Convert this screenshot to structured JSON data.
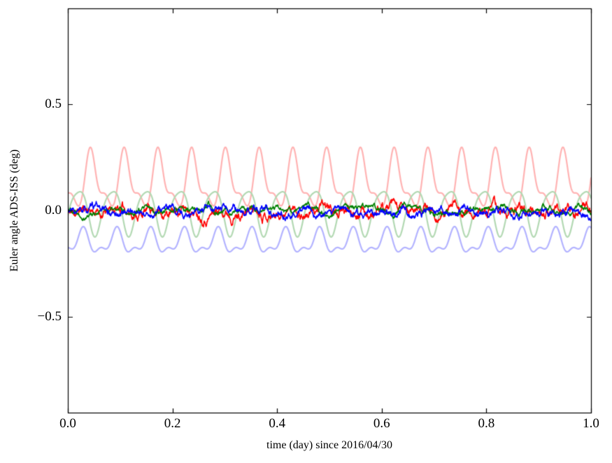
{
  "figure": {
    "background": "#ffffff",
    "frame_color": "#000000",
    "tick_color": "#000000",
    "text_color": "#000000"
  },
  "chart_data": {
    "type": "line",
    "title": "",
    "xlabel": "time (day) since 2016/04/30",
    "ylabel": "Euler angle ADS-ISS (deg)",
    "xlim": [
      0.0,
      1.0
    ],
    "ylim": [
      -0.95,
      0.95
    ],
    "grid": false,
    "legend": "none",
    "tick_direction": "in",
    "xticks": [
      {
        "value": 0.0,
        "label": "0.0"
      },
      {
        "value": 0.2,
        "label": "0.2"
      },
      {
        "value": 0.4,
        "label": "0.4"
      },
      {
        "value": 0.6,
        "label": "0.6"
      },
      {
        "value": 0.8,
        "label": "0.8"
      },
      {
        "value": 1.0,
        "label": "1.0"
      }
    ],
    "yticks": [
      {
        "value": 0.5,
        "label": "0.5"
      },
      {
        "value": 0.0,
        "label": "0.0"
      },
      {
        "value": -0.5,
        "label": "−0.5"
      }
    ],
    "series": [
      {
        "name": "pale-red-periodic",
        "description": "pale red periodic curve, ~15.5 cycles/day, peaks ≈ +0.30, troughs ≈ +0.03",
        "color": "#ffb3b3",
        "line_width": 2.2,
        "kind": "periodic",
        "samples": 2200,
        "offset": 0.05,
        "components": [
          {
            "shape": "hump",
            "amp": 0.24,
            "freq": 15.5,
            "phase": -2.81,
            "exp": 2.5
          },
          {
            "shape": "sin",
            "amp": 0.03,
            "freq": 31.0,
            "phase": 0.6
          }
        ]
      },
      {
        "name": "pale-green-periodic",
        "description": "pale green periodic curve oscillating between ≈ +0.12 and −0.12, ~15.5 cycles/day",
        "color": "#b3d9b3",
        "line_width": 2.2,
        "kind": "periodic",
        "samples": 2200,
        "offset": 0.0,
        "components": [
          {
            "shape": "sin",
            "amp": 0.105,
            "freq": 15.5,
            "phase": -0.4
          },
          {
            "shape": "sin",
            "amp": 0.02,
            "freq": 31.0,
            "phase": 1.1
          }
        ]
      },
      {
        "name": "pale-blue-periodic",
        "description": "pale blue periodic curve oscillating between ≈ −0.08 and −0.22, ~15.5 cycles/day",
        "color": "#b3b3ff",
        "line_width": 2.2,
        "kind": "periodic",
        "samples": 2200,
        "offset": -0.15,
        "components": [
          {
            "shape": "sin",
            "amp": 0.05,
            "freq": 15.5,
            "phase": -1.2
          },
          {
            "shape": "sin",
            "amp": 0.025,
            "freq": 31.0,
            "phase": 2.0
          }
        ]
      },
      {
        "name": "red-noisy",
        "description": "saturated red noisy trace centered near 0.00, excursions ≈ ±0.05",
        "color": "#ff0000",
        "line_width": 1.6,
        "kind": "noisy",
        "samples": 1440,
        "mean": -0.002,
        "std": 0.02,
        "smooth": 0.93,
        "seed": 11,
        "components": [
          {
            "shape": "sin",
            "amp": 0.012,
            "freq": 15.5,
            "phase": -2.0
          }
        ]
      },
      {
        "name": "green-noisy",
        "description": "dark green noisy trace centered near 0.00, excursions ≈ ±0.04",
        "color": "#008000",
        "line_width": 1.6,
        "kind": "noisy",
        "samples": 1440,
        "mean": 0.002,
        "std": 0.012,
        "smooth": 0.93,
        "seed": 22,
        "components": [
          {
            "shape": "sin",
            "amp": 0.008,
            "freq": 15.5,
            "phase": 1.0
          }
        ]
      },
      {
        "name": "blue-noisy",
        "description": "blue noisy trace slightly below 0.00, excursions ≈ ±0.05",
        "color": "#0000ff",
        "line_width": 1.6,
        "kind": "noisy",
        "samples": 1440,
        "mean": -0.008,
        "std": 0.016,
        "smooth": 0.93,
        "seed": 33,
        "components": [
          {
            "shape": "sin",
            "amp": 0.01,
            "freq": 15.5,
            "phase": 2.5
          }
        ]
      }
    ]
  }
}
